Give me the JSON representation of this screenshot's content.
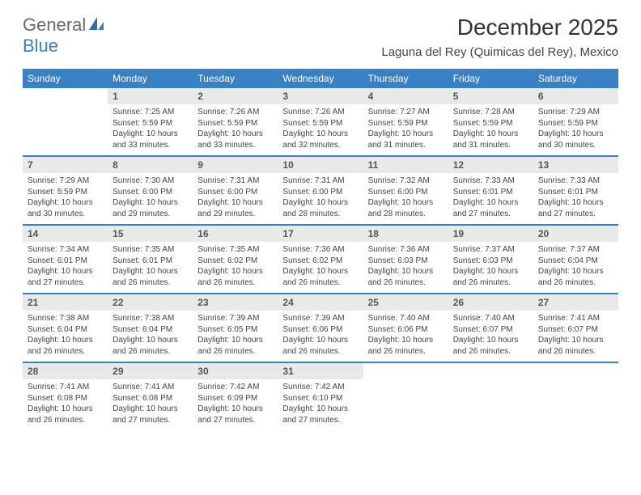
{
  "logo": {
    "text_general": "General",
    "text_blue": "Blue"
  },
  "title": "December 2025",
  "location": "Laguna del Rey (Quimicas del Rey), Mexico",
  "colors": {
    "header_bg": "#3a81c4",
    "header_text": "#ffffff",
    "daynum_bg": "#e9e9e9",
    "daynum_text": "#555555",
    "body_text": "#444444",
    "title_text": "#333333",
    "logo_gray": "#6b6b6b",
    "logo_blue": "#3a81c4",
    "week_border": "#3a81c4",
    "page_bg": "#ffffff"
  },
  "typography": {
    "title_fontsize": 28,
    "location_fontsize": 15,
    "dow_fontsize": 12,
    "daynum_fontsize": 12,
    "body_fontsize": 10
  },
  "dow": [
    "Sunday",
    "Monday",
    "Tuesday",
    "Wednesday",
    "Thursday",
    "Friday",
    "Saturday"
  ],
  "weeks": [
    [
      {
        "n": "",
        "sunrise": "",
        "sunset": "",
        "daylight": ""
      },
      {
        "n": "1",
        "sunrise": "Sunrise: 7:25 AM",
        "sunset": "Sunset: 5:59 PM",
        "daylight": "Daylight: 10 hours and 33 minutes."
      },
      {
        "n": "2",
        "sunrise": "Sunrise: 7:26 AM",
        "sunset": "Sunset: 5:59 PM",
        "daylight": "Daylight: 10 hours and 33 minutes."
      },
      {
        "n": "3",
        "sunrise": "Sunrise: 7:26 AM",
        "sunset": "Sunset: 5:59 PM",
        "daylight": "Daylight: 10 hours and 32 minutes."
      },
      {
        "n": "4",
        "sunrise": "Sunrise: 7:27 AM",
        "sunset": "Sunset: 5:59 PM",
        "daylight": "Daylight: 10 hours and 31 minutes."
      },
      {
        "n": "5",
        "sunrise": "Sunrise: 7:28 AM",
        "sunset": "Sunset: 5:59 PM",
        "daylight": "Daylight: 10 hours and 31 minutes."
      },
      {
        "n": "6",
        "sunrise": "Sunrise: 7:29 AM",
        "sunset": "Sunset: 5:59 PM",
        "daylight": "Daylight: 10 hours and 30 minutes."
      }
    ],
    [
      {
        "n": "7",
        "sunrise": "Sunrise: 7:29 AM",
        "sunset": "Sunset: 5:59 PM",
        "daylight": "Daylight: 10 hours and 30 minutes."
      },
      {
        "n": "8",
        "sunrise": "Sunrise: 7:30 AM",
        "sunset": "Sunset: 6:00 PM",
        "daylight": "Daylight: 10 hours and 29 minutes."
      },
      {
        "n": "9",
        "sunrise": "Sunrise: 7:31 AM",
        "sunset": "Sunset: 6:00 PM",
        "daylight": "Daylight: 10 hours and 29 minutes."
      },
      {
        "n": "10",
        "sunrise": "Sunrise: 7:31 AM",
        "sunset": "Sunset: 6:00 PM",
        "daylight": "Daylight: 10 hours and 28 minutes."
      },
      {
        "n": "11",
        "sunrise": "Sunrise: 7:32 AM",
        "sunset": "Sunset: 6:00 PM",
        "daylight": "Daylight: 10 hours and 28 minutes."
      },
      {
        "n": "12",
        "sunrise": "Sunrise: 7:33 AM",
        "sunset": "Sunset: 6:01 PM",
        "daylight": "Daylight: 10 hours and 27 minutes."
      },
      {
        "n": "13",
        "sunrise": "Sunrise: 7:33 AM",
        "sunset": "Sunset: 6:01 PM",
        "daylight": "Daylight: 10 hours and 27 minutes."
      }
    ],
    [
      {
        "n": "14",
        "sunrise": "Sunrise: 7:34 AM",
        "sunset": "Sunset: 6:01 PM",
        "daylight": "Daylight: 10 hours and 27 minutes."
      },
      {
        "n": "15",
        "sunrise": "Sunrise: 7:35 AM",
        "sunset": "Sunset: 6:01 PM",
        "daylight": "Daylight: 10 hours and 26 minutes."
      },
      {
        "n": "16",
        "sunrise": "Sunrise: 7:35 AM",
        "sunset": "Sunset: 6:02 PM",
        "daylight": "Daylight: 10 hours and 26 minutes."
      },
      {
        "n": "17",
        "sunrise": "Sunrise: 7:36 AM",
        "sunset": "Sunset: 6:02 PM",
        "daylight": "Daylight: 10 hours and 26 minutes."
      },
      {
        "n": "18",
        "sunrise": "Sunrise: 7:36 AM",
        "sunset": "Sunset: 6:03 PM",
        "daylight": "Daylight: 10 hours and 26 minutes."
      },
      {
        "n": "19",
        "sunrise": "Sunrise: 7:37 AM",
        "sunset": "Sunset: 6:03 PM",
        "daylight": "Daylight: 10 hours and 26 minutes."
      },
      {
        "n": "20",
        "sunrise": "Sunrise: 7:37 AM",
        "sunset": "Sunset: 6:04 PM",
        "daylight": "Daylight: 10 hours and 26 minutes."
      }
    ],
    [
      {
        "n": "21",
        "sunrise": "Sunrise: 7:38 AM",
        "sunset": "Sunset: 6:04 PM",
        "daylight": "Daylight: 10 hours and 26 minutes."
      },
      {
        "n": "22",
        "sunrise": "Sunrise: 7:38 AM",
        "sunset": "Sunset: 6:04 PM",
        "daylight": "Daylight: 10 hours and 26 minutes."
      },
      {
        "n": "23",
        "sunrise": "Sunrise: 7:39 AM",
        "sunset": "Sunset: 6:05 PM",
        "daylight": "Daylight: 10 hours and 26 minutes."
      },
      {
        "n": "24",
        "sunrise": "Sunrise: 7:39 AM",
        "sunset": "Sunset: 6:06 PM",
        "daylight": "Daylight: 10 hours and 26 minutes."
      },
      {
        "n": "25",
        "sunrise": "Sunrise: 7:40 AM",
        "sunset": "Sunset: 6:06 PM",
        "daylight": "Daylight: 10 hours and 26 minutes."
      },
      {
        "n": "26",
        "sunrise": "Sunrise: 7:40 AM",
        "sunset": "Sunset: 6:07 PM",
        "daylight": "Daylight: 10 hours and 26 minutes."
      },
      {
        "n": "27",
        "sunrise": "Sunrise: 7:41 AM",
        "sunset": "Sunset: 6:07 PM",
        "daylight": "Daylight: 10 hours and 26 minutes."
      }
    ],
    [
      {
        "n": "28",
        "sunrise": "Sunrise: 7:41 AM",
        "sunset": "Sunset: 6:08 PM",
        "daylight": "Daylight: 10 hours and 26 minutes."
      },
      {
        "n": "29",
        "sunrise": "Sunrise: 7:41 AM",
        "sunset": "Sunset: 6:08 PM",
        "daylight": "Daylight: 10 hours and 27 minutes."
      },
      {
        "n": "30",
        "sunrise": "Sunrise: 7:42 AM",
        "sunset": "Sunset: 6:09 PM",
        "daylight": "Daylight: 10 hours and 27 minutes."
      },
      {
        "n": "31",
        "sunrise": "Sunrise: 7:42 AM",
        "sunset": "Sunset: 6:10 PM",
        "daylight": "Daylight: 10 hours and 27 minutes."
      },
      {
        "n": "",
        "sunrise": "",
        "sunset": "",
        "daylight": ""
      },
      {
        "n": "",
        "sunrise": "",
        "sunset": "",
        "daylight": ""
      },
      {
        "n": "",
        "sunrise": "",
        "sunset": "",
        "daylight": ""
      }
    ]
  ]
}
